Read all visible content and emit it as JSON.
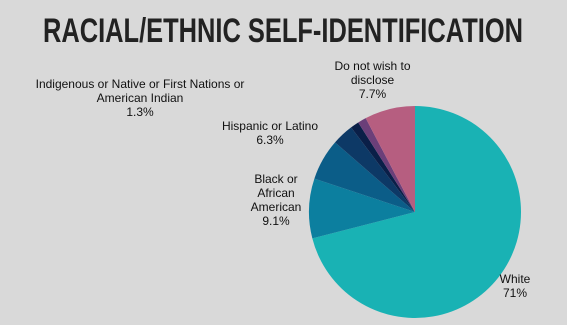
{
  "chart_data": {
    "type": "pie",
    "title": "RACIAL/ETHNIC SELF-IDENTIFICATION",
    "categories": [
      "White",
      "Black or African American",
      "Hispanic or Latino",
      null,
      "Indigenous or Native or First Nations or American Indian",
      null,
      "Do not wish to disclose"
    ],
    "values": [
      71,
      9.1,
      6.3,
      3.3,
      1.3,
      1.3,
      7.7
    ],
    "value_labels": [
      "71%",
      "9.1%",
      "6.3%",
      null,
      "1.3%",
      null,
      "7.7%"
    ],
    "colors": [
      "#19b2b4",
      "#0c7f9f",
      "#0b5d88",
      "#0d3966",
      "#0a1f48",
      "#6b3f79",
      "#b65e80"
    ]
  }
}
